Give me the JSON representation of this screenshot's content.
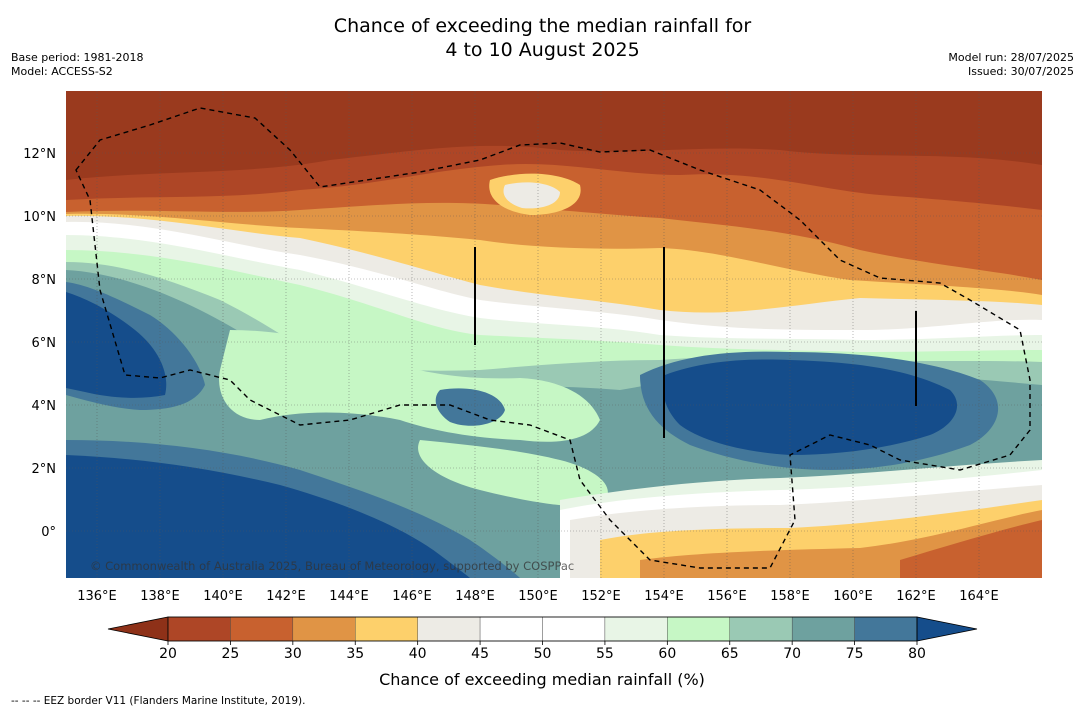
{
  "title": {
    "line1": "Chance of exceeding the median rainfall for",
    "line2": "4 to 10 August 2025"
  },
  "info": {
    "base_period": "Base period: 1981-2018",
    "model": "Model: ACCESS-S2",
    "model_run": "Model run: 28/07/2025",
    "issued": "Issued: 30/07/2025"
  },
  "map": {
    "lon_ticks": [
      "136°E",
      "138°E",
      "140°E",
      "142°E",
      "144°E",
      "146°E",
      "148°E",
      "150°E",
      "152°E",
      "154°E",
      "156°E",
      "158°E",
      "160°E",
      "162°E",
      "164°E"
    ],
    "lat_ticks": [
      "12°N",
      "10°N",
      "8°N",
      "6°N",
      "4°N",
      "2°N",
      "0°"
    ],
    "lon_values": [
      136,
      138,
      140,
      142,
      144,
      146,
      148,
      150,
      152,
      154,
      156,
      158,
      160,
      162,
      164
    ],
    "lat_values": [
      12,
      10,
      8,
      6,
      4,
      2,
      0
    ],
    "copyright": "© Commonwealth of Australia 2025, Bureau of Meteorology, supported by COSPPac"
  },
  "colorbar": {
    "label": "Chance of exceeding median rainfall (%)",
    "ticks": [
      "20",
      "25",
      "30",
      "35",
      "40",
      "45",
      "50",
      "55",
      "60",
      "65",
      "70",
      "75",
      "80"
    ],
    "colors": {
      "under": "#8e3118",
      "c20_25": "#ae4626",
      "c25_30": "#c8612f",
      "c30_35": "#e09445",
      "c35_40": "#fdd06b",
      "c40_45": "#edebe5",
      "c45_50": "#ffffff",
      "c50_55": "#ffffff",
      "c55_60": "#e8f5e6",
      "c60_65": "#c6f7c5",
      "c65_70": "#9ac9b4",
      "c70_75": "#6ea19f",
      "c75_80": "#43779a",
      "over": "#154d8b"
    }
  },
  "legend": {
    "eez": "--  --  -- EEZ border V11 (Flanders Marine Institute, 2019)."
  }
}
